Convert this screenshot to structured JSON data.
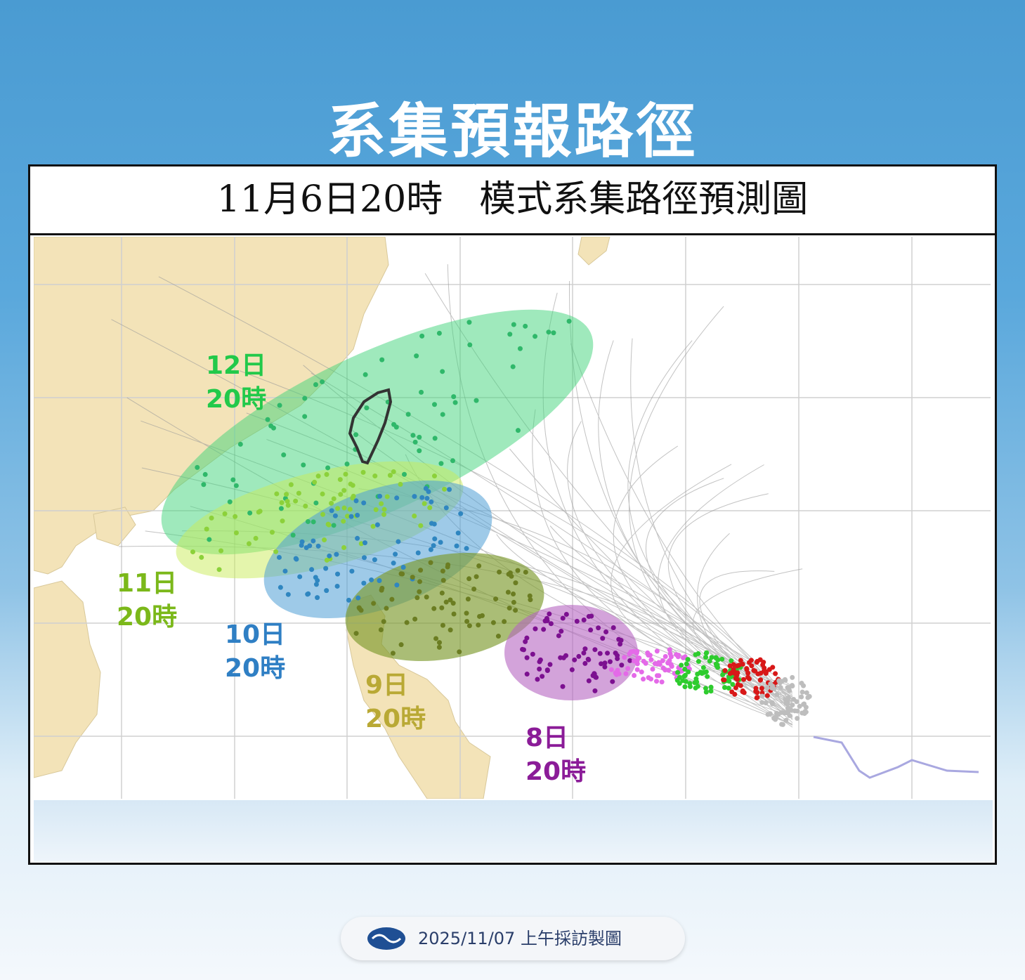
{
  "header": {
    "title": "系集預報路徑"
  },
  "map": {
    "title": "11月6日20時　模式系集路徑預測圖",
    "labels": [
      {
        "day": "12日",
        "time": "20時",
        "color": "#22c94a"
      },
      {
        "day": "11日",
        "time": "20時",
        "color": "#7bb81a"
      },
      {
        "day": "10日",
        "time": "20時",
        "color": "#2f7fc4"
      },
      {
        "day": "9日",
        "time": "20時",
        "color": "#b9a935"
      },
      {
        "day": "8日",
        "time": "20時",
        "color": "#8b1c98"
      }
    ]
  },
  "footer": {
    "text": "2025/11/07 上午採訪製圖"
  }
}
